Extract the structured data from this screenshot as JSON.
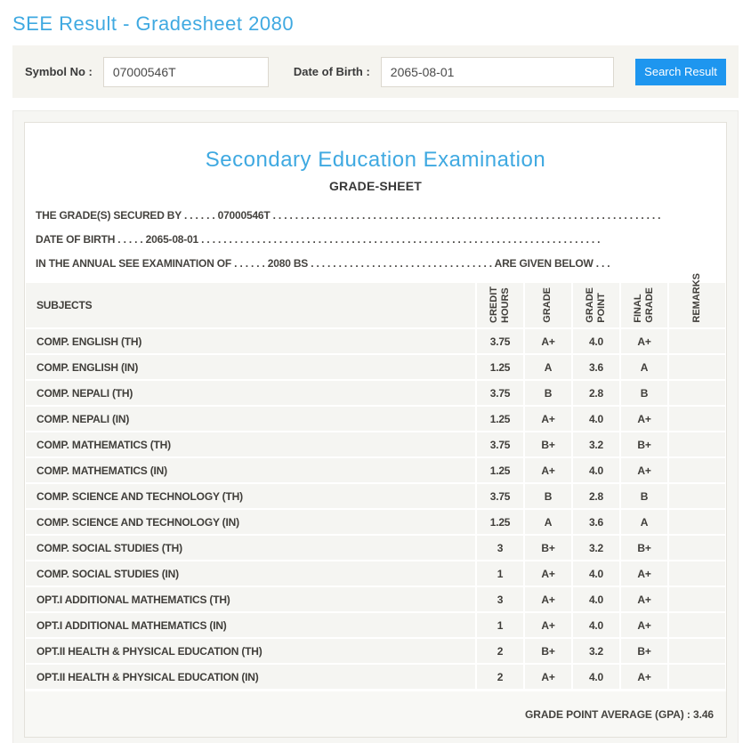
{
  "page": {
    "title": "SEE Result - Gradesheet 2080"
  },
  "search": {
    "symbol_label": "Symbol No :",
    "symbol_value": "07000546T",
    "dob_label": "Date of Birth :",
    "dob_value": "2065-08-01",
    "button_label": "Search Result"
  },
  "sheet": {
    "title": "Secondary Education Examination",
    "subtitle": "GRADE-SHEET",
    "line1": "THE GRADE(S) SECURED BY . . . . . . 07000546T . . . . . . . . . . . . . . . . . . . . . . . . . . . . . . . . . . . . . . . . . . . . . . . . . . . . . . . . . . . . . . . . . . . . . .",
    "line2": "DATE OF BIRTH . . . . . 2065-08-01 . . . . . . . . . . . . . . . . . . . . . . . . . . . . . . . . . . . . . . . . . . . . . . . . . . . . . . . . . . . . . . . . . . . . . . . .",
    "line3": "IN THE ANNUAL SEE EXAMINATION OF . . . . . . 2080 BS . . . . . . . . . . . . . . . . . . . . . . . . . . . . . . . . . ARE GIVEN BELOW . . .",
    "gpa_text": "GRADE POINT AVERAGE (GPA) : 3.46"
  },
  "table": {
    "headers": {
      "subjects": "SUBJECTS",
      "credit_hours": "CREDIT\nHOURS",
      "grade": "GRADE",
      "grade_point": "GRADE\nPOINT",
      "final_grade": "FINAL\nGRADE",
      "remarks": "REMARKS"
    },
    "rows": [
      {
        "subject": "COMP. ENGLISH (TH)",
        "credit": "3.75",
        "grade": "A+",
        "point": "4.0",
        "final": "A+",
        "remarks": ""
      },
      {
        "subject": "COMP. ENGLISH (IN)",
        "credit": "1.25",
        "grade": "A",
        "point": "3.6",
        "final": "A",
        "remarks": ""
      },
      {
        "subject": "COMP. NEPALI (TH)",
        "credit": "3.75",
        "grade": "B",
        "point": "2.8",
        "final": "B",
        "remarks": ""
      },
      {
        "subject": "COMP. NEPALI (IN)",
        "credit": "1.25",
        "grade": "A+",
        "point": "4.0",
        "final": "A+",
        "remarks": ""
      },
      {
        "subject": "COMP. MATHEMATICS (TH)",
        "credit": "3.75",
        "grade": "B+",
        "point": "3.2",
        "final": "B+",
        "remarks": ""
      },
      {
        "subject": "COMP. MATHEMATICS (IN)",
        "credit": "1.25",
        "grade": "A+",
        "point": "4.0",
        "final": "A+",
        "remarks": ""
      },
      {
        "subject": "COMP. SCIENCE AND TECHNOLOGY (TH)",
        "credit": "3.75",
        "grade": "B",
        "point": "2.8",
        "final": "B",
        "remarks": ""
      },
      {
        "subject": "COMP. SCIENCE AND TECHNOLOGY (IN)",
        "credit": "1.25",
        "grade": "A",
        "point": "3.6",
        "final": "A",
        "remarks": ""
      },
      {
        "subject": "COMP. SOCIAL STUDIES (TH)",
        "credit": "3",
        "grade": "B+",
        "point": "3.2",
        "final": "B+",
        "remarks": ""
      },
      {
        "subject": "COMP. SOCIAL STUDIES (IN)",
        "credit": "1",
        "grade": "A+",
        "point": "4.0",
        "final": "A+",
        "remarks": ""
      },
      {
        "subject": "OPT.I ADDITIONAL MATHEMATICS (TH)",
        "credit": "3",
        "grade": "A+",
        "point": "4.0",
        "final": "A+",
        "remarks": ""
      },
      {
        "subject": "OPT.I ADDITIONAL MATHEMATICS (IN)",
        "credit": "1",
        "grade": "A+",
        "point": "4.0",
        "final": "A+",
        "remarks": ""
      },
      {
        "subject": "OPT.II HEALTH & PHYSICAL EDUCATION (TH)",
        "credit": "2",
        "grade": "B+",
        "point": "3.2",
        "final": "B+",
        "remarks": ""
      },
      {
        "subject": "OPT.II HEALTH & PHYSICAL EDUCATION (IN)",
        "credit": "2",
        "grade": "A+",
        "point": "4.0",
        "final": "A+",
        "remarks": ""
      }
    ]
  },
  "colors": {
    "accent_blue": "#3fa9e1",
    "button_blue": "#1e96ef",
    "panel_beige": "#f5f4ef",
    "cell_gray": "#f5f5f2"
  }
}
